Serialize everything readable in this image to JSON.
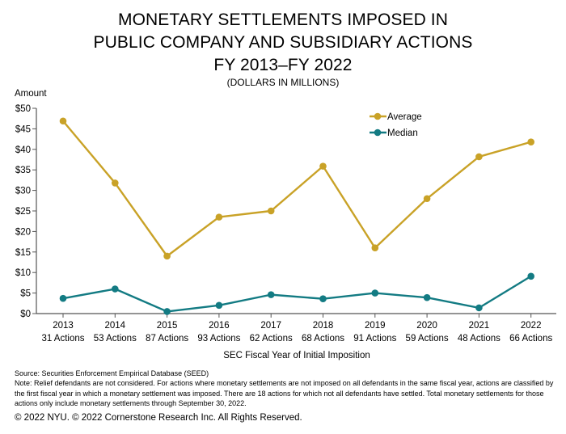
{
  "chart_data": {
    "type": "line",
    "title_lines": [
      "MONETARY SETTLEMENTS IMPOSED IN",
      "PUBLIC COMPANY AND SUBSIDIARY ACTIONS",
      "FY 2013–FY 2022"
    ],
    "subtitle": "(DOLLARS IN MILLIONS)",
    "ylabel": "Amount",
    "xlabel": "SEC Fiscal Year of Initial Imposition",
    "ylim": [
      0,
      50
    ],
    "yticks": [
      0,
      5,
      10,
      15,
      20,
      25,
      30,
      35,
      40,
      45,
      50
    ],
    "ytick_labels": [
      "$0",
      "$5",
      "$10",
      "$15",
      "$20",
      "$25",
      "$30",
      "$35",
      "$40",
      "$45",
      "$50"
    ],
    "categories": [
      "2013",
      "2014",
      "2015",
      "2016",
      "2017",
      "2018",
      "2019",
      "2020",
      "2021",
      "2022"
    ],
    "category_sublabels": [
      "31 Actions",
      "53 Actions",
      "87 Actions",
      "93 Actions",
      "62 Actions",
      "68 Actions",
      "91 Actions",
      "59 Actions",
      "48 Actions",
      "66 Actions"
    ],
    "series": [
      {
        "name": "Average",
        "color": "#C9A227",
        "values": [
          46.9,
          31.8,
          14.0,
          23.5,
          25.0,
          35.9,
          16.0,
          28.0,
          38.2,
          41.8
        ]
      },
      {
        "name": "Median",
        "color": "#137B83",
        "values": [
          3.7,
          6.0,
          0.5,
          2.0,
          4.6,
          3.6,
          5.0,
          3.9,
          1.4,
          9.1
        ]
      }
    ],
    "legend_position": "top-right",
    "grid": false
  },
  "footer": {
    "source": "Source: Securities Enforcement Empirical Database (SEED)",
    "note": "Note: Relief defendants are not considered. For actions where monetary settlements are not imposed on all defendants in the same fiscal year, actions are classified by the first fiscal year in which a monetary settlement was imposed. There are 18 actions for which not all defendants have settled. Total monetary settlements for those actions only include monetary settlements through September 30, 2022.",
    "copyright": "© 2022 NYU. © 2022 Cornerstone Research Inc. All Rights Reserved."
  }
}
